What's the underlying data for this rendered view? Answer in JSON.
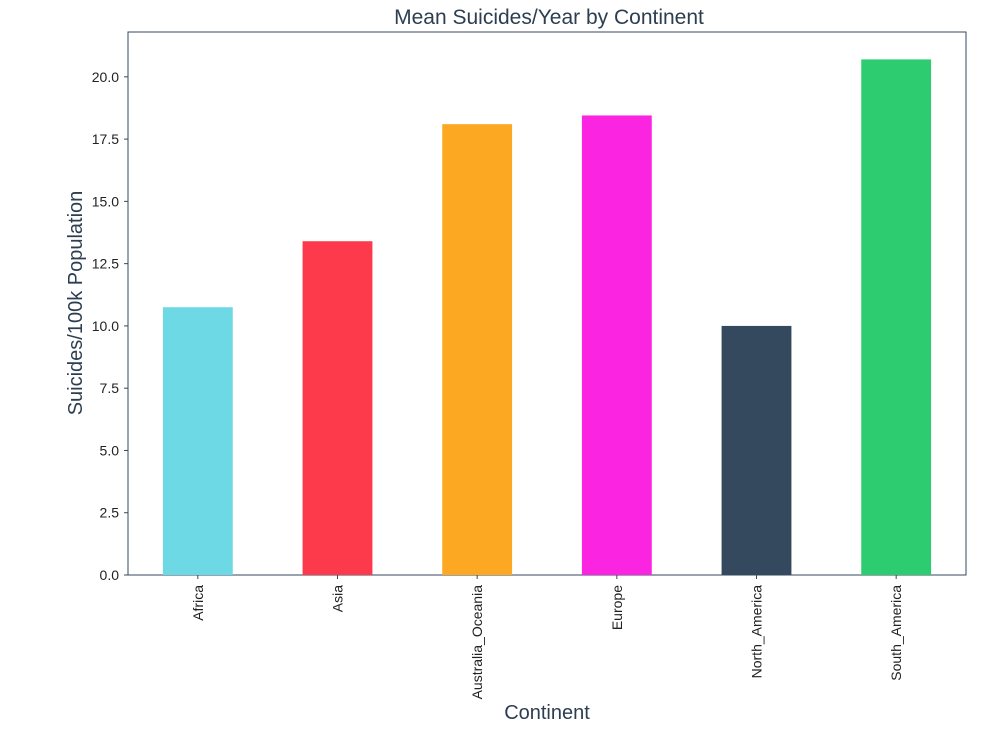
{
  "chart_data": {
    "type": "bar",
    "title": "Mean Suicides/Year by Continent",
    "xlabel": "Continent",
    "ylabel": "Suicides/100k Population",
    "categories": [
      "Africa",
      "Asia",
      "Australia_Oceania",
      "Europe",
      "North_America",
      "South_America"
    ],
    "values": [
      10.75,
      13.4,
      18.1,
      18.45,
      10.0,
      20.7
    ],
    "colors": [
      "#6dd9e5",
      "#fc3a4c",
      "#fca822",
      "#fb25e1",
      "#34495e",
      "#2ecc71"
    ],
    "ylim": [
      0,
      21.8
    ],
    "yticks": [
      "0.0",
      "2.5",
      "5.0",
      "7.5",
      "10.0",
      "12.5",
      "15.0",
      "17.5",
      "20.0"
    ],
    "ytick_values": [
      0,
      2.5,
      5,
      7.5,
      10,
      12.5,
      15,
      17.5,
      20
    ],
    "grid": false,
    "legend": "none"
  }
}
